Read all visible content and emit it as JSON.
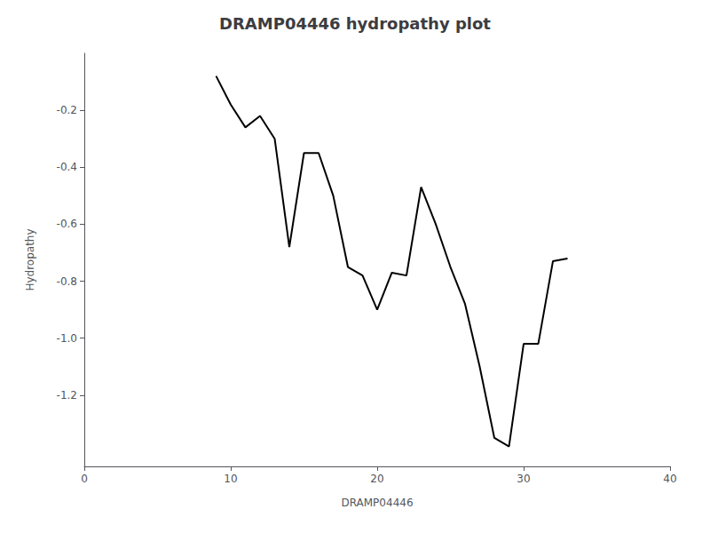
{
  "chart_data": {
    "type": "line",
    "title": "DRAMP04446 hydropathy plot",
    "xlabel": "DRAMP04446",
    "ylabel": "Hydropathy",
    "x": [
      9,
      10,
      11,
      12,
      13,
      14,
      15,
      16,
      17,
      18,
      19,
      20,
      21,
      22,
      23,
      24,
      25,
      26,
      27,
      28,
      29,
      30,
      31,
      32,
      33
    ],
    "values": [
      -0.08,
      -0.18,
      -0.26,
      -0.22,
      -0.3,
      -0.68,
      -0.35,
      -0.35,
      -0.5,
      -0.75,
      -0.78,
      -0.9,
      -0.77,
      -0.78,
      -0.47,
      -0.6,
      -0.75,
      -0.88,
      -1.1,
      -1.35,
      -1.38,
      -1.02,
      -1.02,
      -0.73,
      -0.72
    ],
    "color": "black",
    "xlim": [
      0,
      40
    ],
    "xticks": [
      0,
      10,
      20,
      30,
      40
    ],
    "ylim": [
      -1.45,
      0
    ],
    "yticks": [
      -1.2,
      {
        "value": -1.0,
        "label": "-1.0"
      },
      -0.8,
      -0.6,
      -0.4,
      -0.2
    ],
    "grid": false
  }
}
